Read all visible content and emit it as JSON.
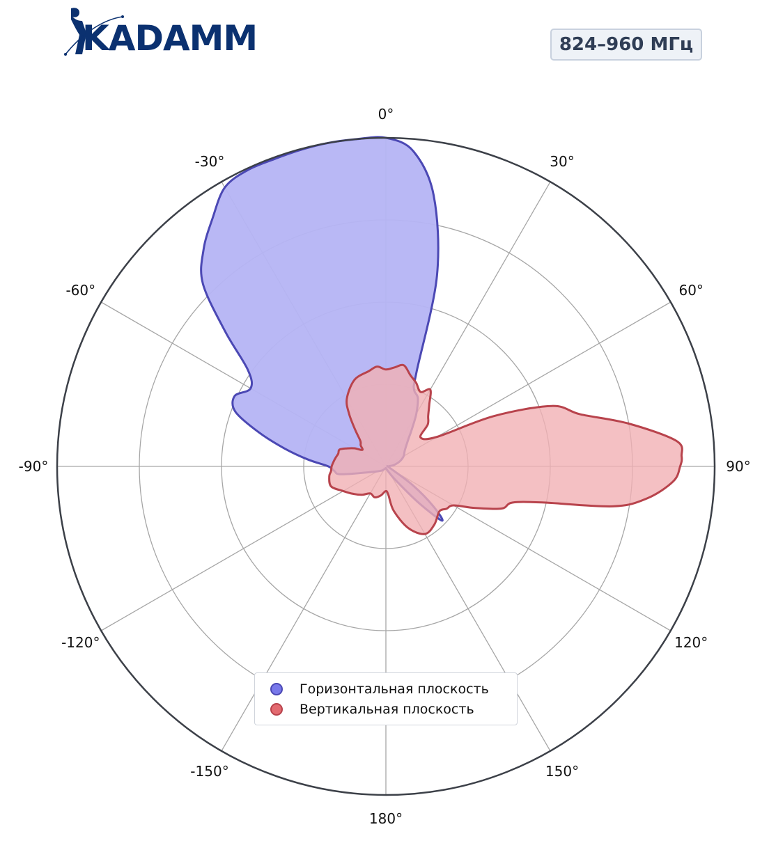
{
  "header": {
    "logo_text": "KADAMM",
    "band_badge": "824–960 МГц"
  },
  "colors": {
    "horizontal_fill": "#b5b4f4",
    "horizontal_line": "#4b48b4",
    "vertical_fill": "#f1b0b4",
    "vertical_line": "#b8434c",
    "grid": "#a6a6a6",
    "outer_ring": "#3c4048",
    "logo": "#0b3170"
  },
  "chart_data": {
    "type": "polar",
    "r_range": [
      0,
      4
    ],
    "grid": true,
    "theta_direction": "clockwise",
    "theta_zero": "top",
    "angle_ticks": [
      {
        "deg": 0,
        "label": "0°"
      },
      {
        "deg": 30,
        "label": "30°"
      },
      {
        "deg": 60,
        "label": "60°"
      },
      {
        "deg": 90,
        "label": "90°"
      },
      {
        "deg": 120,
        "label": "120°"
      },
      {
        "deg": 150,
        "label": "150°"
      },
      {
        "deg": 180,
        "label": "180°"
      },
      {
        "deg": -150,
        "label": "-150°"
      },
      {
        "deg": -120,
        "label": "-120°"
      },
      {
        "deg": -90,
        "label": "-90°"
      },
      {
        "deg": -60,
        "label": "-60°"
      },
      {
        "deg": -30,
        "label": "-30°"
      }
    ],
    "legend_position": "lower center",
    "series": [
      {
        "name": "Горизонтальная плоскость",
        "points": [
          [
            -180,
            0.02
          ],
          [
            -150,
            0.04
          ],
          [
            -120,
            0.12
          ],
          [
            -100,
            0.55
          ],
          [
            -95,
            0.63
          ],
          [
            -90,
            0.7
          ],
          [
            -85,
            0.95
          ],
          [
            -80,
            1.25
          ],
          [
            -75,
            1.6
          ],
          [
            -70,
            1.95
          ],
          [
            -65,
            2.03
          ],
          [
            -60,
            1.9
          ],
          [
            -55,
            2.05
          ],
          [
            -50,
            2.55
          ],
          [
            -45,
            3.15
          ],
          [
            -40,
            3.45
          ],
          [
            -35,
            3.68
          ],
          [
            -30,
            3.92
          ],
          [
            -25,
            3.98
          ],
          [
            -20,
            3.98
          ],
          [
            -15,
            3.99
          ],
          [
            -10,
            4.0
          ],
          [
            -5,
            4.0
          ],
          [
            0,
            4.0
          ],
          [
            5,
            3.85
          ],
          [
            10,
            3.35
          ],
          [
            15,
            2.4
          ],
          [
            18,
            1.2
          ],
          [
            20,
            1.0
          ],
          [
            25,
            0.92
          ],
          [
            30,
            0.74
          ],
          [
            35,
            0.55
          ],
          [
            40,
            0.42
          ],
          [
            50,
            0.3
          ],
          [
            60,
            0.25
          ],
          [
            70,
            0.18
          ],
          [
            80,
            0.1
          ],
          [
            90,
            0.03
          ],
          [
            110,
            0.05
          ],
          [
            125,
            0.4
          ],
          [
            130,
            0.75
          ],
          [
            134,
            0.95
          ],
          [
            138,
            0.6
          ],
          [
            145,
            0.2
          ],
          [
            160,
            0.05
          ]
        ]
      },
      {
        "name": "Вертикальная плоскость",
        "points": [
          [
            -180,
            0.3
          ],
          [
            -170,
            0.36
          ],
          [
            -160,
            0.4
          ],
          [
            -150,
            0.38
          ],
          [
            -140,
            0.45
          ],
          [
            -130,
            0.52
          ],
          [
            -120,
            0.6
          ],
          [
            -110,
            0.71
          ],
          [
            -100,
            0.7
          ],
          [
            -95,
            0.67
          ],
          [
            -90,
            0.66
          ],
          [
            -85,
            0.64
          ],
          [
            -80,
            0.62
          ],
          [
            -75,
            0.6
          ],
          [
            -70,
            0.6
          ],
          [
            -65,
            0.52
          ],
          [
            -60,
            0.44
          ],
          [
            -55,
            0.35
          ],
          [
            -50,
            0.4
          ],
          [
            -45,
            0.44
          ],
          [
            -40,
            0.58
          ],
          [
            -35,
            0.78
          ],
          [
            -30,
            0.95
          ],
          [
            -20,
            1.12
          ],
          [
            -10,
            1.18
          ],
          [
            -5,
            1.22
          ],
          [
            0,
            1.18
          ],
          [
            5,
            1.21
          ],
          [
            10,
            1.25
          ],
          [
            15,
            1.15
          ],
          [
            20,
            1.08
          ],
          [
            25,
            1.0
          ],
          [
            30,
            1.08
          ],
          [
            35,
            0.92
          ],
          [
            40,
            0.8
          ],
          [
            45,
            0.72
          ],
          [
            50,
            0.55
          ],
          [
            60,
            0.72
          ],
          [
            65,
            1.45
          ],
          [
            70,
            2.15
          ],
          [
            75,
            2.45
          ],
          [
            80,
            3.0
          ],
          [
            85,
            3.55
          ],
          [
            88,
            3.6
          ],
          [
            90,
            3.58
          ],
          [
            93,
            3.5
          ],
          [
            97,
            3.2
          ],
          [
            100,
            2.8
          ],
          [
            103,
            1.95
          ],
          [
            106,
            1.6
          ],
          [
            110,
            1.5
          ],
          [
            115,
            1.2
          ],
          [
            120,
            0.95
          ],
          [
            125,
            0.9
          ],
          [
            130,
            0.85
          ],
          [
            140,
            0.92
          ],
          [
            150,
            0.95
          ],
          [
            160,
            0.8
          ],
          [
            170,
            0.55
          ],
          [
            175,
            0.35
          ]
        ]
      }
    ]
  }
}
